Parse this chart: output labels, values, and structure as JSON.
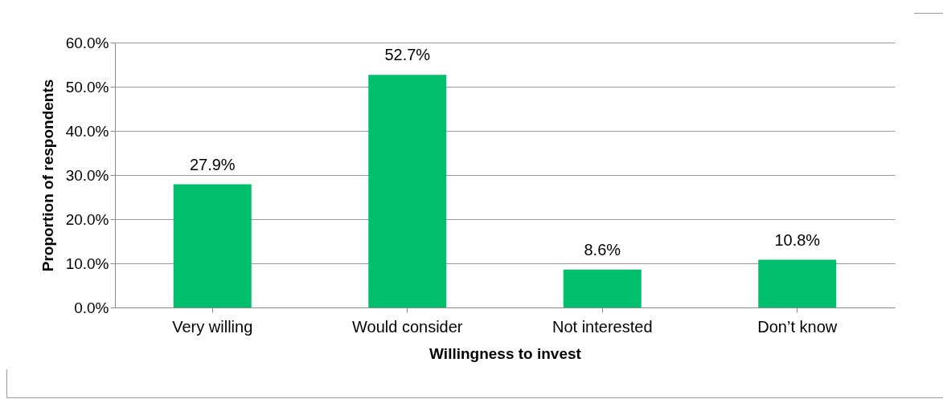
{
  "chart_data": {
    "type": "bar",
    "xlabel": "Willingness to invest",
    "ylabel": "Proportion of respondents",
    "categories": [
      "Very willing",
      "Would consider",
      "Not interested",
      "Don’t know"
    ],
    "values": [
      27.9,
      52.7,
      8.6,
      10.8
    ],
    "value_labels": [
      "27.9%",
      "52.7%",
      "8.6%",
      "10.8%"
    ],
    "color": "#00c06e",
    "ylim": [
      0,
      60
    ],
    "yticks": [
      {
        "value": 0,
        "label": "0.0%"
      },
      {
        "value": 10,
        "label": "10.0%"
      },
      {
        "value": 20,
        "label": "20.0%"
      },
      {
        "value": 30,
        "label": "30.0%"
      },
      {
        "value": 40,
        "label": "40.0%"
      },
      {
        "value": 50,
        "label": "50.0%"
      },
      {
        "value": 60,
        "label": "60.0%"
      }
    ],
    "grid": "y"
  }
}
